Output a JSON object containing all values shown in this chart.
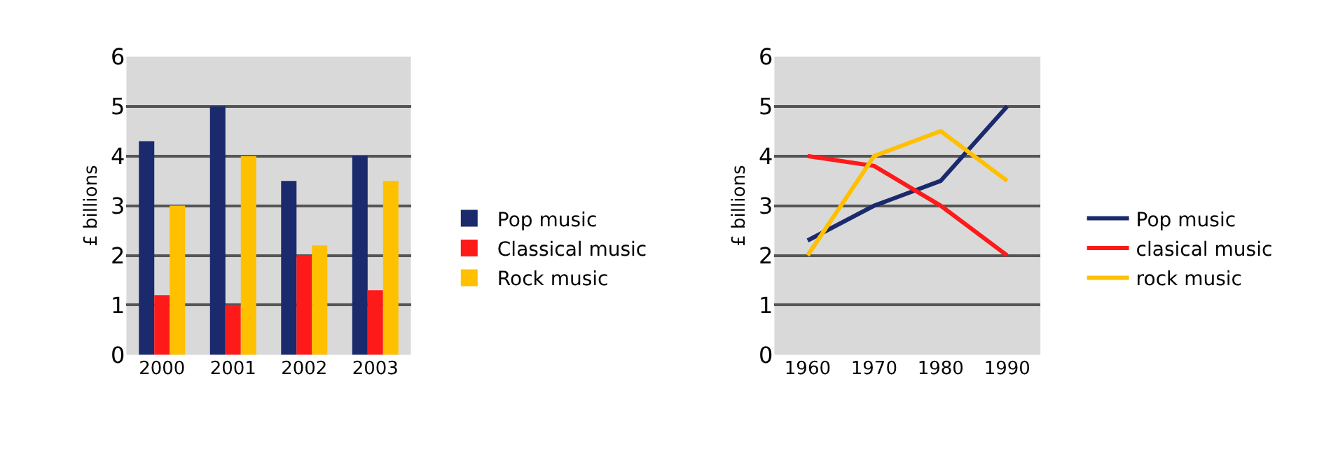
{
  "chart_data": [
    {
      "type": "bar",
      "ylabel": "£ billions",
      "categories": [
        "2000",
        "2001",
        "2002",
        "2003"
      ],
      "ylim": [
        0,
        6
      ],
      "yticks": [
        0,
        1,
        2,
        3,
        4,
        5,
        6
      ],
      "grid": "y",
      "legend": "right",
      "series": [
        {
          "name": "Pop music",
          "color": "#1a2a6c",
          "values": [
            4.3,
            5.0,
            3.5,
            4.0
          ]
        },
        {
          "name": "Classical music",
          "color": "#ff1a1a",
          "values": [
            1.2,
            1.0,
            2.0,
            1.3
          ]
        },
        {
          "name": "Rock music",
          "color": "#ffc000",
          "values": [
            3.0,
            4.0,
            2.2,
            3.5
          ]
        }
      ]
    },
    {
      "type": "line",
      "ylabel": "£ billions",
      "categories": [
        "1960",
        "1970",
        "1980",
        "1990"
      ],
      "ylim": [
        0,
        6
      ],
      "yticks": [
        0,
        1,
        2,
        3,
        4,
        5,
        6
      ],
      "grid": "y",
      "legend": "right",
      "marker": "none",
      "line_style": "solid",
      "series": [
        {
          "name": "Pop music",
          "color": "#1a2a6c",
          "values": [
            2.3,
            3.0,
            3.5,
            5.0
          ]
        },
        {
          "name": "clasical music",
          "color": "#ff1a1a",
          "values": [
            4.0,
            3.8,
            3.0,
            2.0
          ]
        },
        {
          "name": "rock music",
          "color": "#ffc000",
          "values": [
            2.0,
            4.0,
            4.5,
            3.5
          ]
        }
      ]
    }
  ]
}
